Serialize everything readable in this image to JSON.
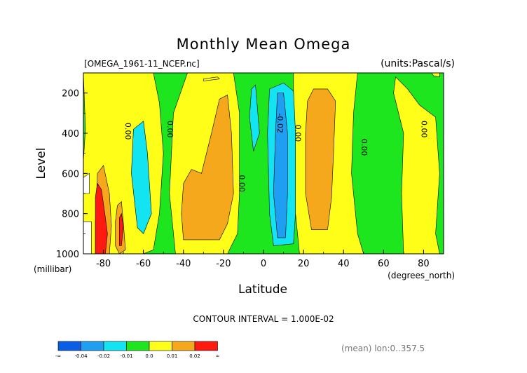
{
  "chart_data": {
    "type": "heatmap",
    "subtype": "filled contour",
    "title": "Monthly Mean Omega",
    "dataset_label": "[OMEGA_1961-11_NCEP.nc]",
    "units_label": "(units:Pascal/s)",
    "xlabel": "Latitude",
    "xunits": "(degrees_north)",
    "ylabel": "Level",
    "yunits": "(millibar)",
    "xlim": [
      -90,
      90
    ],
    "ylim": [
      1000,
      100
    ],
    "y_reversed": true,
    "x_ticks": [
      -80,
      -60,
      -40,
      -20,
      0,
      20,
      40,
      60,
      80
    ],
    "y_ticks": [
      200,
      400,
      600,
      800,
      1000
    ],
    "contour_interval_text": "CONTOUR INTERVAL = 1.000E-02",
    "footer_text": "(mean) lon:0..357.5",
    "contour_labels": [
      {
        "text": "0.00",
        "lat": -69,
        "level": 390
      },
      {
        "text": "0.00",
        "lat": -48,
        "level": 380
      },
      {
        "text": "0.00",
        "lat": -12,
        "level": 650
      },
      {
        "text": "-0.02",
        "lat": 7,
        "level": 350
      },
      {
        "text": "0.00",
        "lat": 16,
        "level": 400
      },
      {
        "text": "0.00",
        "lat": 49,
        "level": 470
      },
      {
        "text": "0.00",
        "lat": 79,
        "level": 380
      }
    ],
    "colorbar": {
      "colors": [
        "#0a5ee6",
        "#1e9ff2",
        "#12e4f2",
        "#1ee61e",
        "#fffe19",
        "#f5a81c",
        "#ff1a10"
      ],
      "labels": [
        "-∞",
        "-0.04",
        "-0.02",
        "-0.01",
        "0.0",
        "0.01",
        "0.02",
        "∞"
      ]
    },
    "levels_legend": [
      {
        "class": "< -0.04",
        "color": "#0a5ee6"
      },
      {
        "class": "-0.04 to -0.02",
        "color": "#1e9ff2"
      },
      {
        "class": "-0.02 to -0.01",
        "color": "#12e4f2"
      },
      {
        "class": "-0.01 to 0.0",
        "color": "#1ee61e"
      },
      {
        "class": "0.0 to 0.01",
        "color": "#fffe19"
      },
      {
        "class": "0.01 to 0.02",
        "color": "#f5a81c"
      },
      {
        "class": "> 0.02",
        "color": "#ff1a10"
      }
    ]
  }
}
